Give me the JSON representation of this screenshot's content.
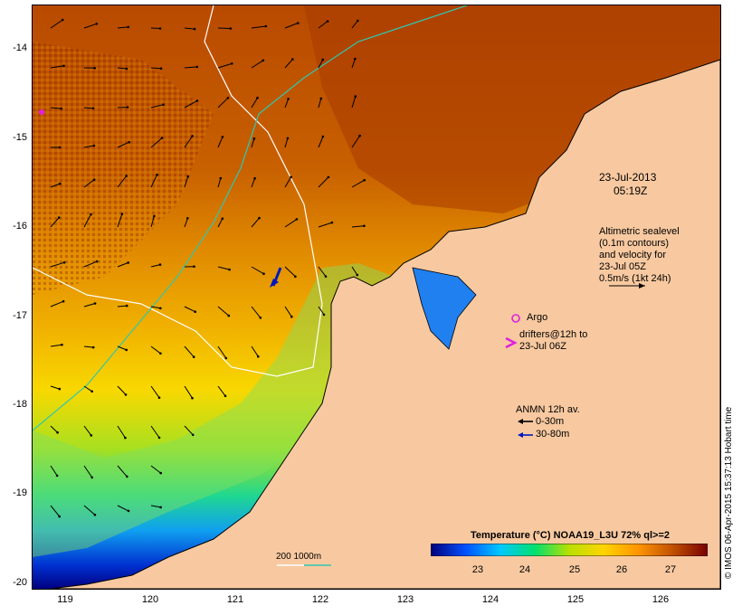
{
  "map": {
    "timestamp_date": "23-Jul-2013",
    "timestamp_time": "05:19Z",
    "lat_ticks": [
      "-14",
      "-15",
      "-16",
      "-17",
      "-18",
      "-19",
      "-20"
    ],
    "lon_ticks": [
      "119",
      "120",
      "121",
      "122",
      "123",
      "124",
      "125",
      "126"
    ],
    "lon_range": [
      118.6,
      126.7
    ],
    "lat_range": [
      -20.1,
      -13.5
    ]
  },
  "legend": {
    "altimetry_lines": [
      "Altimetric sealevel",
      "(0.1m contours)",
      "and velocity for",
      "23-Jul 05Z",
      "0.5m/s (1kt 24h)"
    ],
    "argo_label": "Argo",
    "drifters_lines": [
      "drifters@12h to",
      "23-Jul 06Z"
    ],
    "anmn_title": "ANMN 12h av.",
    "anmn_shallow": "0-30m",
    "anmn_deep": "30-80m",
    "bathy_label": "200  1000m"
  },
  "colorbar": {
    "title": "Temperature (°C) NOAA19_L3U 72% ql>=2",
    "ticks": [
      "23",
      "24",
      "25",
      "26",
      "27"
    ],
    "stops": [
      "#00007a",
      "#0050ff",
      "#00c8ff",
      "#00e070",
      "#b8e000",
      "#ffd400",
      "#ff9400",
      "#c05000",
      "#7a0000"
    ]
  },
  "credit": "© IMOS 06-Apr-2015 15:37:13 Hobart time",
  "colors": {
    "land": "#f8c9a0",
    "bathy_200": "#ffffff",
    "bathy_1000": "#2ec8b0",
    "argo": "#e020e0",
    "drifter": "#e020e0",
    "anmn_shallow": "#000000",
    "anmn_deep": "#0018c0"
  }
}
